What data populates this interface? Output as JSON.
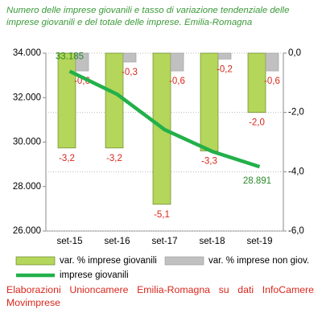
{
  "chart_data": {
    "type": "combo",
    "title": "Numero delle imprese giovanili e tasso di variazione tendenziale delle imprese giovanili e del totale delle imprese. Emilia-Romagna",
    "categories": [
      "set-15",
      "set-16",
      "set-17",
      "set-18",
      "set-19"
    ],
    "ylim": [
      26000,
      34000
    ],
    "yticks": [
      {
        "value": 26000,
        "label": "26.000"
      },
      {
        "value": 28000,
        "label": "28.000"
      },
      {
        "value": 30000,
        "label": "30.000"
      },
      {
        "value": 32000,
        "label": "32.000"
      },
      {
        "value": 34000,
        "label": "34.000"
      }
    ],
    "y2lim": [
      -6,
      0
    ],
    "y2ticks": [
      {
        "value": -6,
        "label": "-6,0"
      },
      {
        "value": -4,
        "label": "-4,0"
      },
      {
        "value": -2,
        "label": "-2,0"
      },
      {
        "value": 0,
        "label": "0,0"
      }
    ],
    "grid": true,
    "series": [
      {
        "name": "var. % imprese giovanili",
        "type": "bar",
        "axis": "y2",
        "color": "#b4d65a",
        "values": [
          -3.2,
          -3.2,
          -5.1,
          -3.3,
          -2.0
        ],
        "value_labels": [
          "-3,2",
          "-3,2",
          "-5,1",
          "-3,3",
          "-2,0"
        ]
      },
      {
        "name": "var. % imprese non giov.",
        "type": "bar",
        "axis": "y2",
        "color": "#c0c0c0",
        "values": [
          -0.6,
          -0.3,
          -0.6,
          -0.2,
          -0.6
        ],
        "value_labels": [
          "-0,6",
          "-0,3",
          "-0,6",
          "-0,2",
          "-0,6"
        ]
      },
      {
        "name": "imprese giovanili",
        "type": "line",
        "color": "#22b04a",
        "values": [
          33185,
          32150,
          30560,
          29580,
          28891
        ],
        "value_labels": [
          "33.185",
          null,
          null,
          null,
          "28.891"
        ]
      }
    ],
    "source": "Elaborazioni Unioncamere Emilia-Romagna su dati InfoCamere Movimprese"
  }
}
